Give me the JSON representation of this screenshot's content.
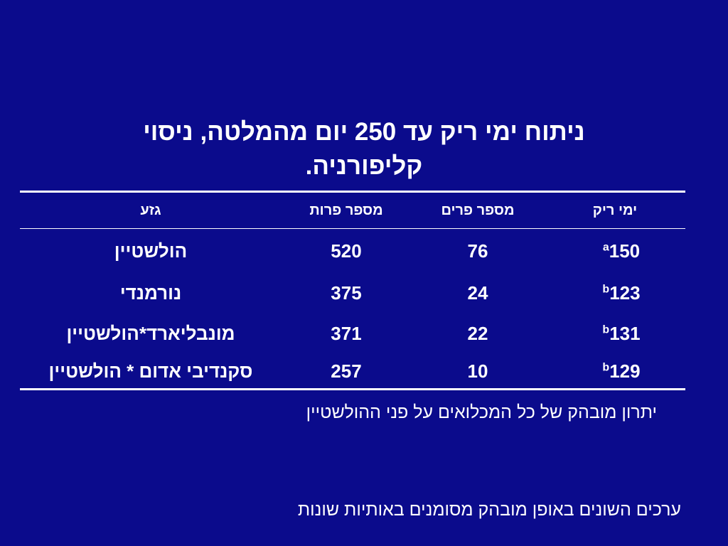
{
  "title": {
    "line1": "ניתוח ימי ריק עד 250 יום מהמלטה, ניסוי",
    "line2": "קליפורניה."
  },
  "table": {
    "headers": {
      "days_open": "ימי ריק",
      "num_cows": "מספר פרים",
      "num_calvings": "מספר פרות",
      "breed": "גזע"
    },
    "rows": [
      {
        "days": "150",
        "sup": "a",
        "cows": "76",
        "calvings": "520",
        "breed": "הולשטיין"
      },
      {
        "days": "123",
        "sup": "b",
        "cows": "24",
        "calvings": "375",
        "breed": "נורמנדי"
      },
      {
        "days": "131",
        "sup": "b",
        "cows": "22",
        "calvings": "371",
        "breed": "מונבליארד*הולשטיין"
      },
      {
        "days": "129",
        "sup": "b",
        "cows": "10",
        "calvings": "257",
        "breed": "סקנדיבי אדום * הולשטיין"
      }
    ]
  },
  "notes": {
    "advantage": "יתרון מובהק של כל המכלואים על פני ההולשטיין",
    "legend": "ערכים השונים באופן מובהק מסומנים באותיות שונות"
  },
  "colors": {
    "background": "#0b0b8c",
    "text": "#ffffff"
  }
}
